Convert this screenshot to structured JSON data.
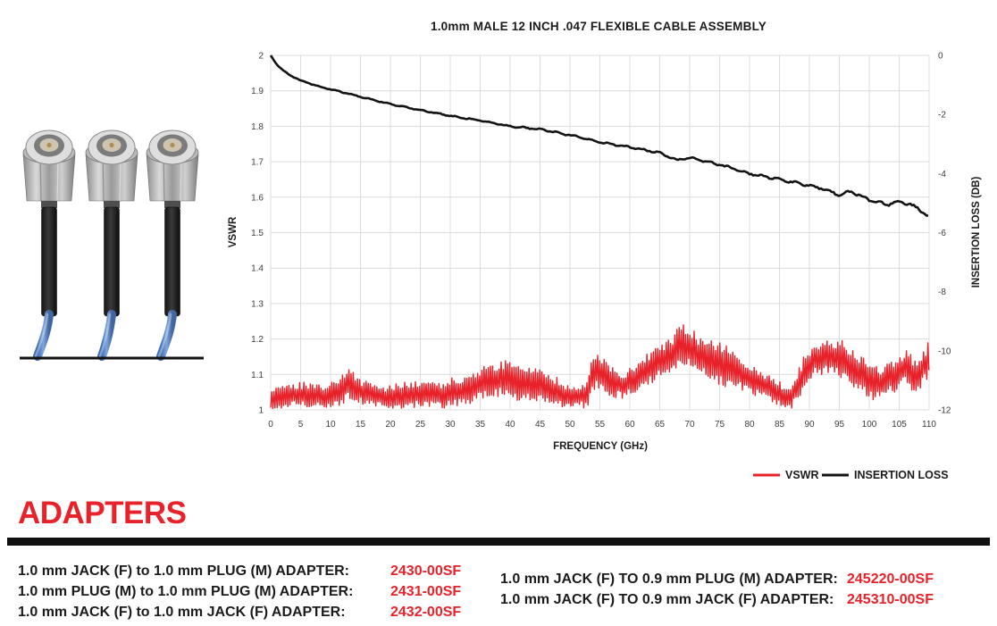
{
  "chart": {
    "title": "1.0mm MALE 12 INCH .047 FLEXIBLE CABLE ASSEMBLY",
    "x_label": "FREQUENCY (GHz)",
    "y_left_label": "VSWR",
    "y_right_label": "INSERTION LOSS (DB)",
    "legend": [
      {
        "label": "VSWR",
        "color": "#e8222a"
      },
      {
        "label": "INSERTION LOSS",
        "color": "#131313"
      }
    ]
  },
  "chart_data": {
    "type": "line",
    "title": "1.0mm MALE 12 INCH .047 FLEXIBLE CABLE ASSEMBLY",
    "xlabel": "FREQUENCY (GHz)",
    "x_range": [
      0,
      110
    ],
    "x_tick_step": 5,
    "y_left": {
      "label": "VSWR",
      "range": [
        1,
        2
      ],
      "tick_step": 0.1
    },
    "y_right": {
      "label": "INSERTION LOSS (DB)",
      "range": [
        -12,
        0
      ],
      "tick_step": 2
    },
    "grid": true,
    "legend_position": "bottom-right",
    "series": [
      {
        "name": "INSERTION LOSS",
        "axis": "right",
        "color": "#131313",
        "x": [
          0,
          1,
          2,
          3,
          5,
          8,
          10,
          15,
          20,
          25,
          30,
          35,
          40,
          45,
          50,
          55,
          60,
          65,
          68,
          70,
          75,
          80,
          85,
          90,
          93,
          95,
          97,
          100,
          103,
          105,
          107,
          110
        ],
        "db": [
          0,
          -0.3,
          -0.5,
          -0.65,
          -0.85,
          -1.05,
          -1.15,
          -1.4,
          -1.65,
          -1.85,
          -2.05,
          -2.2,
          -2.4,
          -2.5,
          -2.7,
          -2.95,
          -3.1,
          -3.3,
          -3.55,
          -3.45,
          -3.7,
          -4.0,
          -4.2,
          -4.4,
          -4.55,
          -4.75,
          -4.6,
          -4.9,
          -5.05,
          -4.95,
          -5.05,
          -5.45
        ]
      },
      {
        "name": "VSWR",
        "axis": "left",
        "color": "#e8222a",
        "x": [
          0,
          3,
          5,
          8,
          10,
          12,
          13,
          15,
          18,
          20,
          23,
          25,
          28,
          30,
          33,
          35,
          37,
          39,
          41,
          43,
          45,
          48,
          50,
          53,
          54,
          55,
          57,
          59,
          61,
          63,
          65,
          67,
          69,
          71,
          73,
          75,
          78,
          80,
          83,
          85,
          87,
          89,
          91,
          93,
          95,
          98,
          100,
          102,
          104,
          106,
          108,
          110
        ],
        "upper": [
          1.06,
          1.08,
          1.08,
          1.07,
          1.08,
          1.11,
          1.12,
          1.09,
          1.07,
          1.07,
          1.08,
          1.08,
          1.08,
          1.09,
          1.1,
          1.12,
          1.13,
          1.14,
          1.13,
          1.12,
          1.12,
          1.09,
          1.07,
          1.08,
          1.18,
          1.16,
          1.12,
          1.11,
          1.13,
          1.16,
          1.18,
          1.21,
          1.25,
          1.22,
          1.2,
          1.19,
          1.17,
          1.13,
          1.1,
          1.08,
          1.07,
          1.15,
          1.2,
          1.21,
          1.2,
          1.17,
          1.14,
          1.12,
          1.15,
          1.17,
          1.14,
          1.2
        ],
        "lower": [
          1.0,
          1.0,
          1.0,
          1.0,
          1.0,
          1.01,
          1.02,
          1.01,
          1.0,
          1.0,
          1.0,
          1.0,
          1.0,
          1.0,
          1.01,
          1.02,
          1.03,
          1.03,
          1.02,
          1.02,
          1.02,
          1.0,
          1.0,
          1.0,
          1.05,
          1.04,
          1.03,
          1.02,
          1.04,
          1.06,
          1.08,
          1.1,
          1.12,
          1.1,
          1.08,
          1.06,
          1.05,
          1.04,
          1.02,
          1.0,
          1.0,
          1.04,
          1.08,
          1.09,
          1.08,
          1.04,
          1.02,
          1.02,
          1.04,
          1.06,
          1.04,
          1.08
        ]
      }
    ]
  },
  "photo": {
    "description": "three 1.0mm male connectors on blue .047 flexible cable",
    "cable_color": "#5b8fd4"
  },
  "adapters": {
    "heading": "ADAPTERS",
    "heading_color": "#e8222a",
    "left": [
      {
        "label": "1.0 mm JACK (F) to 1.0 mm PLUG (M) ADAPTER:",
        "part": "2430-00SF"
      },
      {
        "label": "1.0 mm PLUG (M) to 1.0 mm PLUG (M) ADAPTER:",
        "part": "2431-00SF"
      },
      {
        "label": "1.0 mm JACK (F) to 1.0 mm JACK (F) ADAPTER:",
        "part": "2432-00SF"
      }
    ],
    "right": [
      {
        "label": "1.0 mm JACK (F) TO 0.9 mm PLUG (M) ADAPTER:",
        "part": "245220-00SF"
      },
      {
        "label": "1.0 mm JACK (F) TO 0.9 mm JACK (F) ADAPTER:",
        "part": "245310-00SF"
      }
    ]
  }
}
